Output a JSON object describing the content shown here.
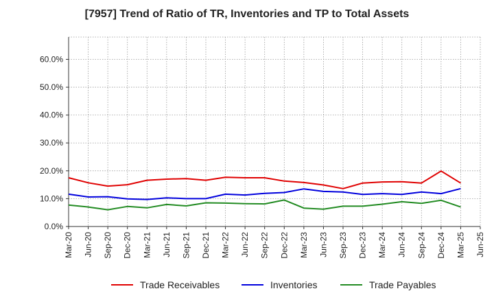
{
  "chart_data": {
    "type": "line",
    "title": "[7957]  Trend of Ratio of TR, Inventories and TP to Total Assets",
    "xlabel": "",
    "ylabel": "",
    "ylim": [
      0,
      0.68
    ],
    "y_ticks": [
      0,
      0.1,
      0.2,
      0.3,
      0.4,
      0.5,
      0.6
    ],
    "y_tick_labels": [
      "0.0%",
      "10.0%",
      "20.0%",
      "30.0%",
      "40.0%",
      "50.0%",
      "60.0%"
    ],
    "x_ticks": [
      "Mar-20",
      "Jun-20",
      "Sep-20",
      "Dec-20",
      "Mar-21",
      "Jun-21",
      "Sep-21",
      "Dec-21",
      "Mar-22",
      "Jun-22",
      "Sep-22",
      "Dec-22",
      "Mar-23",
      "Jun-23",
      "Sep-23",
      "Dec-23",
      "Mar-24",
      "Jun-24",
      "Sep-24",
      "Dec-24",
      "Mar-25",
      "Jun-25"
    ],
    "x": [
      "Mar-20",
      "Jun-20",
      "Sep-20",
      "Dec-20",
      "Mar-21",
      "Jun-21",
      "Sep-21",
      "Dec-21",
      "Mar-22",
      "Jun-22",
      "Sep-22",
      "Dec-22",
      "Mar-23",
      "Jun-23",
      "Sep-23",
      "Dec-23",
      "Mar-24",
      "Jun-24",
      "Sep-24",
      "Dec-24",
      "Mar-25"
    ],
    "grid": true,
    "legend_position": "bottom",
    "series": [
      {
        "name": "Trade Receivables",
        "color": "#e00000",
        "values": [
          0.175,
          0.157,
          0.145,
          0.15,
          0.166,
          0.17,
          0.172,
          0.166,
          0.177,
          0.175,
          0.175,
          0.163,
          0.158,
          0.149,
          0.136,
          0.156,
          0.16,
          0.161,
          0.156,
          0.199,
          0.156
        ]
      },
      {
        "name": "Inventories",
        "color": "#0000dd",
        "values": [
          0.116,
          0.106,
          0.107,
          0.099,
          0.097,
          0.103,
          0.1,
          0.1,
          0.116,
          0.113,
          0.119,
          0.122,
          0.135,
          0.126,
          0.124,
          0.115,
          0.118,
          0.115,
          0.124,
          0.118,
          0.136
        ]
      },
      {
        "name": "Trade Payables",
        "color": "#228b22",
        "values": [
          0.077,
          0.07,
          0.06,
          0.072,
          0.067,
          0.079,
          0.074,
          0.085,
          0.084,
          0.082,
          0.081,
          0.095,
          0.066,
          0.062,
          0.073,
          0.073,
          0.08,
          0.089,
          0.083,
          0.094,
          0.07
        ]
      }
    ]
  }
}
